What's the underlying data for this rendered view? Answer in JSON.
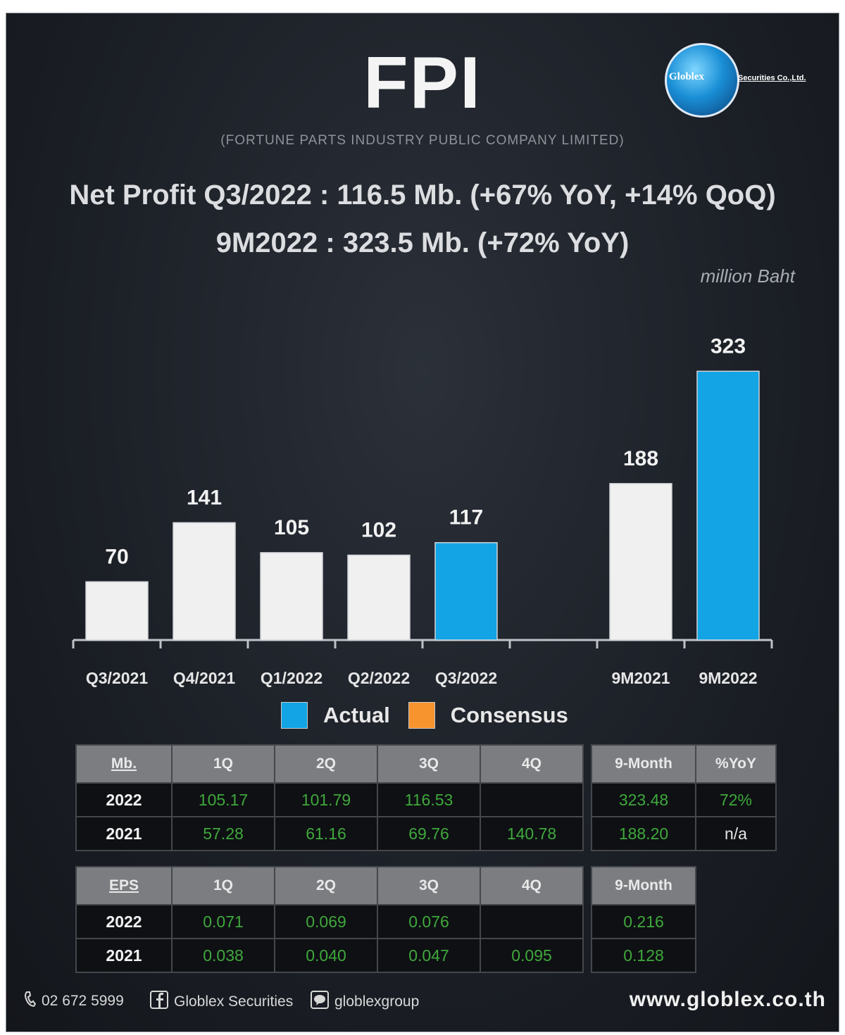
{
  "header": {
    "title": "FPI",
    "subtitle": "(FORTUNE PARTS INDUSTRY PUBLIC COMPANY LIMITED)",
    "logo_text": "Globlex",
    "logo_tag": "Securities Co.,Ltd."
  },
  "headline": {
    "line1": "Net Profit  Q3/2022 : 116.5 Mb. (+67% YoY, +14% QoQ)",
    "line2": "9M2022 : 323.5 Mb. (+72% YoY)"
  },
  "unit_label": "million Baht",
  "chart_data": {
    "type": "bar",
    "unit": "million Baht",
    "categories": [
      "Q3/2021",
      "Q4/2021",
      "Q1/2022",
      "Q2/2022",
      "Q3/2022",
      "",
      "9M2021",
      "9M2022"
    ],
    "values": [
      70,
      141,
      105,
      102,
      117,
      null,
      188,
      323
    ],
    "highlight": [
      false,
      false,
      false,
      false,
      true,
      false,
      false,
      true
    ],
    "colors": {
      "base": "#f0f0f0",
      "highlight": "#12a4e4"
    },
    "ylim": [
      0,
      330
    ],
    "legend": [
      {
        "label": "Actual",
        "color": "#12a4e4"
      },
      {
        "label": "Consensus",
        "color": "#f7942e"
      }
    ],
    "legend_position": "bottom"
  },
  "net_profit_table": {
    "corner": "Mb.",
    "headers": [
      "1Q",
      "2Q",
      "3Q",
      "4Q"
    ],
    "rows": [
      {
        "year": "2022",
        "values": [
          "105.17",
          "101.79",
          "116.53",
          ""
        ]
      },
      {
        "year": "2021",
        "values": [
          "57.28",
          "61.16",
          "69.76",
          "140.78"
        ]
      }
    ],
    "summary_headers": [
      "9-Month",
      "%YoY"
    ],
    "summary_rows": [
      [
        "323.48",
        "72%"
      ],
      [
        "188.20",
        "n/a"
      ]
    ]
  },
  "eps_table": {
    "corner": "EPS",
    "headers": [
      "1Q",
      "2Q",
      "3Q",
      "4Q"
    ],
    "rows": [
      {
        "year": "2022",
        "values": [
          "0.071",
          "0.069",
          "0.076",
          ""
        ]
      },
      {
        "year": "2021",
        "values": [
          "0.038",
          "0.040",
          "0.047",
          "0.095"
        ]
      }
    ],
    "summary_headers": [
      "9-Month"
    ],
    "summary_rows": [
      [
        "0.216"
      ],
      [
        "0.128"
      ]
    ]
  },
  "footer": {
    "phone": "02 672 5999",
    "facebook": "Globlex Securities",
    "line": "globlexgroup",
    "website": "www.globlex.co.th"
  }
}
